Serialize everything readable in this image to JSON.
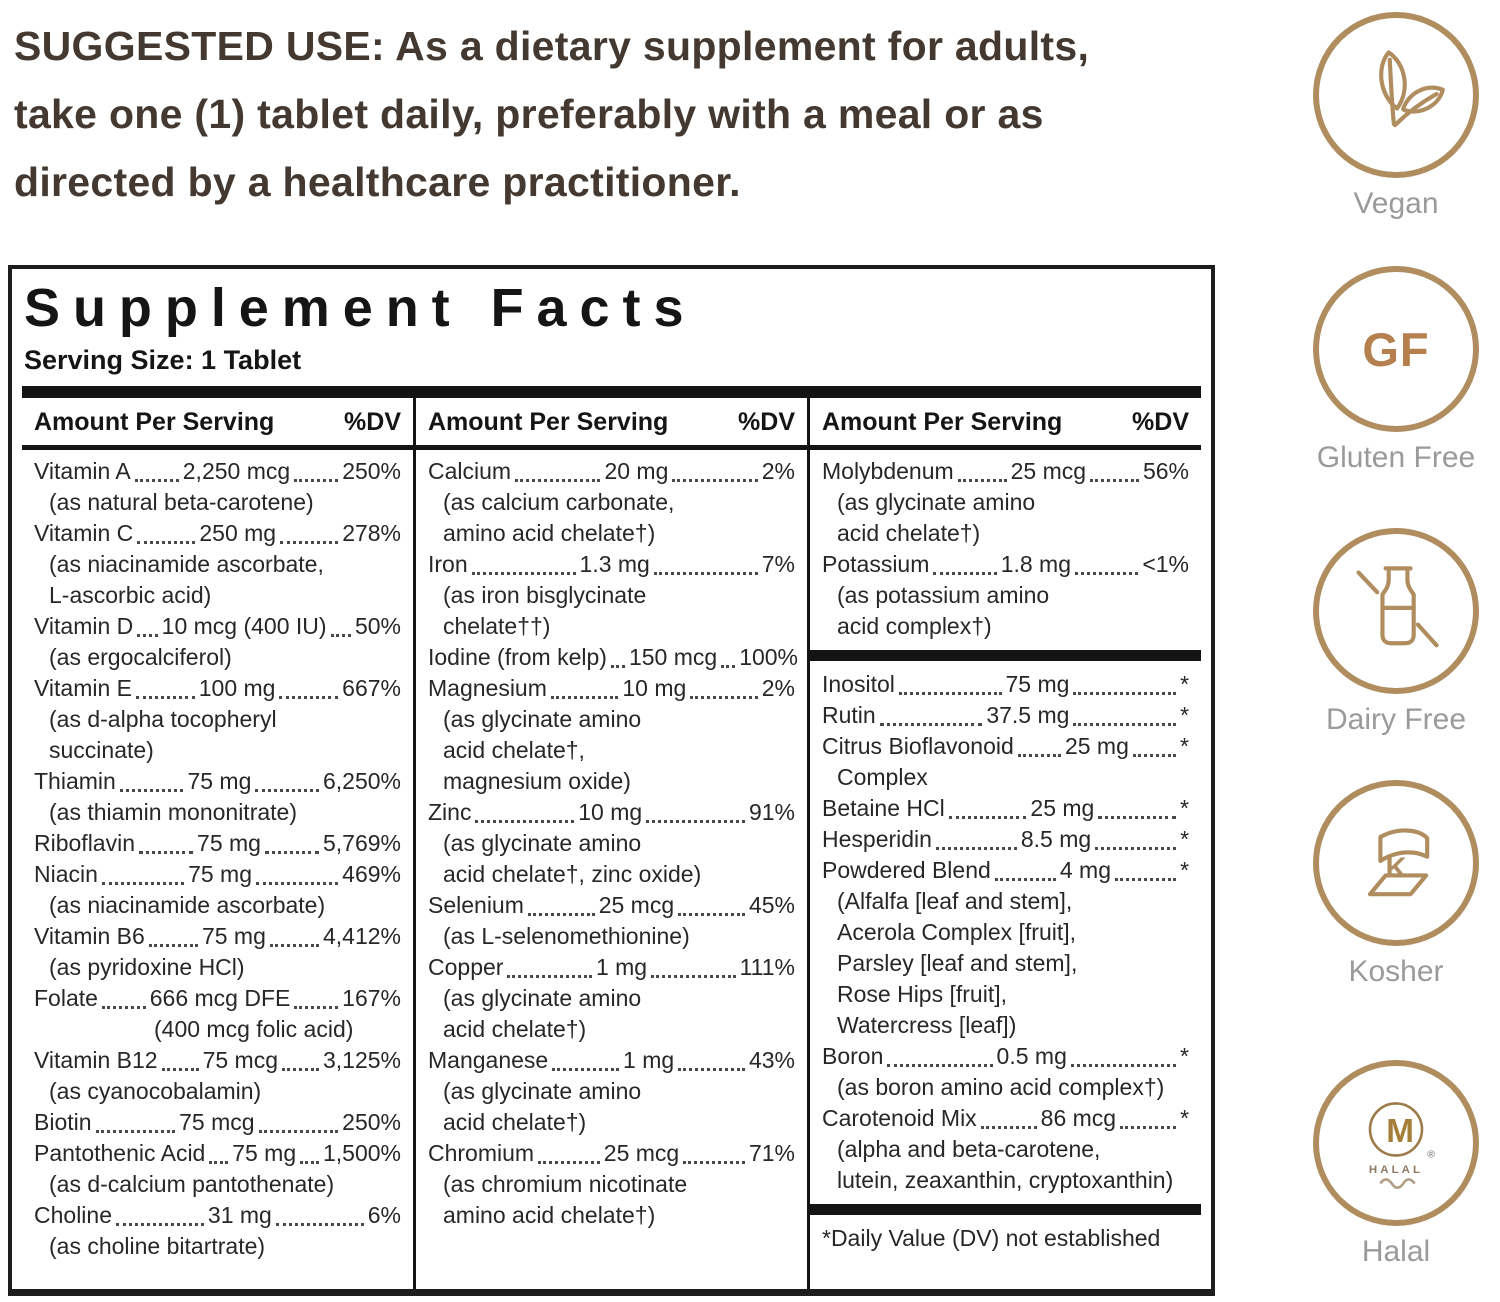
{
  "suggested_use": {
    "lines": [
      "SUGGESTED USE: As a dietary supplement for adults,",
      "take one (1) tablet daily, preferably with a meal or as",
      "directed by a healthcare practitioner."
    ]
  },
  "panel": {
    "title": "Supplement Facts",
    "serving_size": "Serving Size: 1 Tablet",
    "column_header": {
      "amount": "Amount Per Serving",
      "dv": "%DV"
    },
    "columns": [
      {
        "items": [
          {
            "name": "Vitamin A",
            "amount": "2,250 mcg",
            "dv": "250%",
            "notes": [
              "(as natural beta-carotene)"
            ]
          },
          {
            "name": "Vitamin C",
            "amount": "250 mg",
            "dv": "278%",
            "notes": [
              "(as niacinamide ascorbate,",
              "L-ascorbic acid)"
            ]
          },
          {
            "name": "Vitamin D",
            "amount": "10 mcg (400 IU)",
            "dv": "50%",
            "notes": [
              "(as ergocalciferol)"
            ]
          },
          {
            "name": "Vitamin E",
            "amount": "100 mg",
            "dv": "667%",
            "notes": [
              "(as d-alpha tocopheryl",
              "succinate)"
            ]
          },
          {
            "name": "Thiamin",
            "amount": "75 mg",
            "dv": "6,250%",
            "notes": [
              "(as thiamin mononitrate)"
            ]
          },
          {
            "name": "Riboflavin",
            "amount": "75 mg",
            "dv": "5,769%"
          },
          {
            "name": "Niacin",
            "amount": "75 mg",
            "dv": "469%",
            "notes": [
              "(as niacinamide ascorbate)"
            ]
          },
          {
            "name": "Vitamin B6",
            "amount": "75 mg",
            "dv": "4,412%",
            "notes": [
              "(as pyridoxine HCl)"
            ]
          },
          {
            "name": "Folate",
            "amount": "666 mcg DFE",
            "dv": "167%",
            "note_center": true,
            "notes": [
              "(400 mcg folic acid)"
            ]
          },
          {
            "name": "Vitamin B12",
            "amount": "75 mcg",
            "dv": "3,125%",
            "notes": [
              "(as cyanocobalamin)"
            ]
          },
          {
            "name": "Biotin",
            "amount": "75 mcg",
            "dv": "250%"
          },
          {
            "name": "Pantothenic Acid",
            "amount": "75 mg",
            "dv": "1,500%",
            "notes": [
              "(as d-calcium pantothenate)"
            ]
          },
          {
            "name": "Choline",
            "amount": "31 mg",
            "dv": "6%",
            "notes": [
              "(as choline bitartrate)"
            ]
          }
        ]
      },
      {
        "items": [
          {
            "name": "Calcium",
            "amount": "20 mg",
            "dv": "2%",
            "notes": [
              "(as calcium carbonate,",
              "amino acid chelate†)"
            ]
          },
          {
            "name": "Iron",
            "amount": "1.3 mg",
            "dv": "7%",
            "notes": [
              "(as iron bisglycinate",
              "chelate††)"
            ]
          },
          {
            "name": "Iodine (from kelp)",
            "amount": "150 mcg",
            "dv": "100%"
          },
          {
            "name": "Magnesium",
            "amount": "10 mg",
            "dv": "2%",
            "notes": [
              "(as glycinate amino",
              "acid chelate†,",
              "magnesium oxide)"
            ]
          },
          {
            "name": "Zinc",
            "amount": "10 mg",
            "dv": "91%",
            "notes": [
              "(as glycinate amino",
              "acid chelate†, zinc oxide)"
            ]
          },
          {
            "name": "Selenium",
            "amount": "25 mcg",
            "dv": "45%",
            "notes": [
              "(as L-selenomethionine)"
            ]
          },
          {
            "name": "Copper",
            "amount": "1 mg",
            "dv": "111%",
            "notes": [
              "(as glycinate amino",
              "acid chelate†)"
            ]
          },
          {
            "name": "Manganese",
            "amount": "1 mg",
            "dv": "43%",
            "notes": [
              "(as glycinate amino",
              "acid chelate†)"
            ]
          },
          {
            "name": "Chromium",
            "amount": "25 mcg",
            "dv": "71%",
            "notes": [
              "(as chromium nicotinate",
              "amino acid chelate†)"
            ]
          }
        ]
      },
      {
        "items": [
          {
            "name": "Molybdenum",
            "amount": "25 mcg",
            "dv": "56%",
            "notes": [
              "(as glycinate amino",
              "acid chelate†)"
            ]
          },
          {
            "name": "Potassium",
            "amount": "1.8 mg",
            "dv": "<1%",
            "notes": [
              "(as potassium amino",
              "acid complex†)"
            ]
          },
          {
            "type": "bar"
          },
          {
            "name": "Inositol",
            "amount": "75 mg",
            "dv": "*"
          },
          {
            "name": "Rutin",
            "amount": "37.5 mg",
            "dv": "*"
          },
          {
            "name": "Citrus Bioflavonoid",
            "amount": "25 mg",
            "dv": "*",
            "notes": [
              "Complex"
            ]
          },
          {
            "name": "Betaine HCl",
            "amount": "25 mg",
            "dv": "*"
          },
          {
            "name": "Hesperidin",
            "amount": "8.5 mg",
            "dv": "*"
          },
          {
            "name": "Powdered Blend",
            "amount": "4 mg",
            "dv": "*",
            "notes": [
              "(Alfalfa [leaf and stem],",
              "Acerola Complex [fruit],",
              "Parsley [leaf and stem],",
              "Rose Hips [fruit],",
              "Watercress [leaf])"
            ]
          },
          {
            "name": "Boron",
            "amount": "0.5 mg",
            "dv": "*",
            "notes": [
              "(as boron amino acid complex†)"
            ]
          },
          {
            "name": "Carotenoid Mix",
            "amount": "86 mcg",
            "dv": "*",
            "notes": [
              "(alpha and beta-carotene,",
              "lutein, zeaxanthin, cryptoxanthin)"
            ]
          },
          {
            "type": "bar"
          },
          {
            "type": "footnote",
            "text": "*Daily Value (DV) not established"
          }
        ]
      }
    ]
  },
  "badges": [
    {
      "label": "Vegan",
      "icon": "vegan-leaves-icon"
    },
    {
      "label": "Gluten Free",
      "icon": "gluten-free-gf-icon",
      "icon_text": "GF"
    },
    {
      "label": "Dairy Free",
      "icon": "dairy-free-milk-bottle-icon"
    },
    {
      "label": "Kosher",
      "icon": "kosher-k-ribbon-icon"
    },
    {
      "label": "Halal",
      "icon": "halal-crescent-m-icon",
      "icon_text_m": "M",
      "icon_text_halal": "HALAL",
      "registered_mark": "®"
    }
  ],
  "colors": {
    "accent_tan": "#b08d5f",
    "gf_text": "#b57f4e",
    "badge_label": "#9a9a9a",
    "panel_ink": "#141414",
    "suggested_ink": "#443930"
  }
}
